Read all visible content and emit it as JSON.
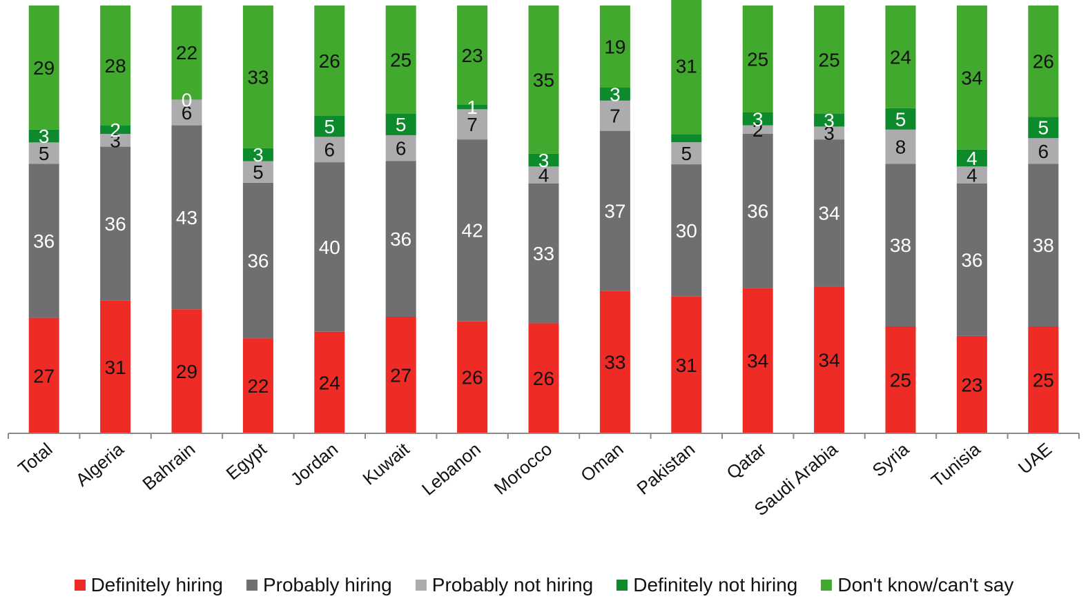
{
  "chart_data": {
    "type": "bar",
    "stacked": true,
    "percent": true,
    "categories": [
      "Total",
      "Algeria",
      "Bahrain",
      "Egypt",
      "Jordan",
      "Kuwait",
      "Lebanon",
      "Morocco",
      "Oman",
      "Pakistan",
      "Qatar",
      "Saudi Arabia",
      "Syria",
      "Tunisia",
      "UAE"
    ],
    "series": [
      {
        "name": "Definitely hiring",
        "color": "#ee2b24",
        "label_color": "#111111",
        "values": [
          27,
          31,
          29,
          22,
          24,
          27,
          26,
          26,
          33,
          31,
          34,
          34,
          25,
          23,
          25
        ]
      },
      {
        "name": "Probably hiring",
        "color": "#6f6f71",
        "label_color": "#ffffff",
        "values": [
          36,
          36,
          43,
          36,
          40,
          36,
          42,
          33,
          37,
          30,
          36,
          34,
          38,
          36,
          38
        ]
      },
      {
        "name": "Probably not hiring",
        "color": "#acacae",
        "label_color": "#111111",
        "values": [
          5,
          3,
          6,
          5,
          6,
          6,
          7,
          4,
          7,
          5,
          2,
          3,
          8,
          4,
          6
        ]
      },
      {
        "name": "Definitely not hiring",
        "color": "#0d8a2c",
        "label_color": "#ffffff",
        "values": [
          3,
          2,
          0,
          3,
          5,
          5,
          1,
          3,
          3,
          null,
          3,
          3,
          5,
          4,
          5
        ]
      },
      {
        "name": "Don't know/can't say",
        "color": "#40a92e",
        "label_color": "#111111",
        "values": [
          29,
          28,
          22,
          33,
          26,
          25,
          23,
          35,
          19,
          31,
          25,
          25,
          24,
          34,
          26
        ]
      }
    ],
    "title": "",
    "xlabel": "",
    "ylabel": "",
    "ylim": [
      0,
      100
    ],
    "grid": false,
    "legend_position": "bottom"
  }
}
